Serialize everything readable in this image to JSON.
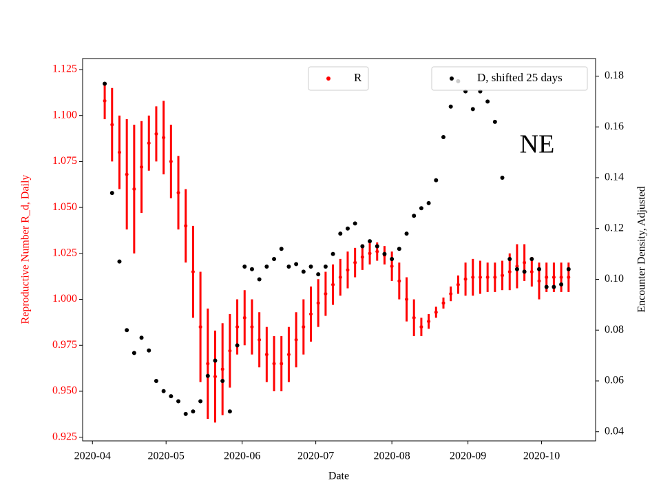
{
  "chart_data": {
    "type": "errorbar-dual",
    "annotation": "NE",
    "xlabel": "Date",
    "ylabel": "Reproductive Number R_d, Daily",
    "y2label": "Encounter Density, Adjusted",
    "xlim": [
      "2020-03-28",
      "2020-10-23"
    ],
    "xticks": [
      "2020-04",
      "2020-05",
      "2020-06",
      "2020-07",
      "2020-08",
      "2020-09",
      "2020-10"
    ],
    "ylim": [
      0.923,
      1.131
    ],
    "yticks": [
      0.925,
      {
        "value": 0.95,
        "label": "0.950"
      },
      0.975,
      {
        "value": 1.0,
        "label": "1.000"
      },
      1.025,
      {
        "value": 1.05,
        "label": "1.050"
      },
      1.075,
      {
        "value": 1.1,
        "label": "1.100"
      },
      1.125
    ],
    "y2lim": [
      0.0364,
      0.1869
    ],
    "y2ticks": [
      0.04,
      0.06,
      0.08,
      {
        "value": 0.1,
        "label": "0.10"
      },
      0.12,
      0.14,
      0.16,
      0.18
    ],
    "x": [
      "2020-04-06",
      "2020-04-09",
      "2020-04-12",
      "2020-04-15",
      "2020-04-18",
      "2020-04-21",
      "2020-04-24",
      "2020-04-27",
      "2020-04-30",
      "2020-05-03",
      "2020-05-06",
      "2020-05-09",
      "2020-05-12",
      "2020-05-15",
      "2020-05-18",
      "2020-05-21",
      "2020-05-24",
      "2020-05-27",
      "2020-05-30",
      "2020-06-02",
      "2020-06-05",
      "2020-06-08",
      "2020-06-11",
      "2020-06-14",
      "2020-06-17",
      "2020-06-20",
      "2020-06-23",
      "2020-06-26",
      "2020-06-29",
      "2020-07-02",
      "2020-07-05",
      "2020-07-08",
      "2020-07-11",
      "2020-07-14",
      "2020-07-17",
      "2020-07-20",
      "2020-07-23",
      "2020-07-26",
      "2020-07-29",
      "2020-08-01",
      "2020-08-04",
      "2020-08-07",
      "2020-08-10",
      "2020-08-13",
      "2020-08-16",
      "2020-08-19",
      "2020-08-22",
      "2020-08-25",
      "2020-08-28",
      "2020-08-31",
      "2020-09-03",
      "2020-09-06",
      "2020-09-09",
      "2020-09-12",
      "2020-09-15",
      "2020-09-18",
      "2020-09-21",
      "2020-09-24",
      "2020-09-27",
      "2020-09-30",
      "2020-10-03",
      "2020-10-06",
      "2020-10-09",
      "2020-10-12"
    ],
    "series": [
      {
        "name": "R",
        "color": "#ff0000",
        "values": [
          1.108,
          1.095,
          1.08,
          1.068,
          1.06,
          1.072,
          1.085,
          1.09,
          1.088,
          1.075,
          1.058,
          1.04,
          1.015,
          0.985,
          0.965,
          0.958,
          0.962,
          0.972,
          0.985,
          0.99,
          0.985,
          0.978,
          0.97,
          0.965,
          0.965,
          0.97,
          0.978,
          0.985,
          0.992,
          0.998,
          1.003,
          1.008,
          1.012,
          1.016,
          1.02,
          1.023,
          1.025,
          1.026,
          1.024,
          1.018,
          1.01,
          1.0,
          0.99,
          0.985,
          0.988,
          0.993,
          0.998,
          1.003,
          1.008,
          1.011,
          1.012,
          1.012,
          1.012,
          1.012,
          1.013,
          1.015,
          1.018,
          1.02,
          1.015,
          1.01,
          1.012,
          1.012,
          1.012,
          1.012
        ],
        "errors": [
          0.01,
          0.02,
          0.02,
          0.03,
          0.035,
          0.025,
          0.015,
          0.015,
          0.02,
          0.02,
          0.02,
          0.02,
          0.025,
          0.03,
          0.03,
          0.025,
          0.025,
          0.02,
          0.015,
          0.015,
          0.015,
          0.015,
          0.015,
          0.015,
          0.015,
          0.015,
          0.015,
          0.015,
          0.015,
          0.013,
          0.012,
          0.011,
          0.01,
          0.01,
          0.008,
          0.007,
          0.006,
          0.005,
          0.005,
          0.008,
          0.01,
          0.012,
          0.01,
          0.005,
          0.004,
          0.003,
          0.003,
          0.004,
          0.005,
          0.009,
          0.01,
          0.009,
          0.008,
          0.008,
          0.008,
          0.01,
          0.012,
          0.01,
          0.008,
          0.01,
          0.008,
          0.008,
          0.008,
          0.008
        ]
      },
      {
        "name": "D, shifted 25 days",
        "color": "#000000",
        "axis": "y2",
        "values": [
          0.177,
          0.134,
          0.107,
          0.08,
          0.071,
          0.077,
          0.072,
          0.06,
          0.056,
          0.054,
          0.052,
          0.047,
          0.048,
          0.052,
          0.062,
          0.068,
          0.06,
          0.048,
          0.074,
          0.105,
          0.104,
          0.1,
          0.105,
          0.108,
          0.112,
          0.105,
          0.106,
          0.103,
          0.105,
          0.102,
          0.105,
          0.11,
          0.118,
          0.12,
          0.122,
          0.113,
          0.115,
          0.113,
          0.11,
          0.108,
          0.112,
          0.118,
          0.125,
          0.128,
          0.13,
          0.139,
          0.156,
          0.168,
          0.178,
          0.174,
          0.167,
          0.174,
          0.17,
          0.162,
          0.14,
          0.108,
          0.104,
          0.103,
          0.108,
          0.104,
          0.097,
          0.097,
          0.098,
          0.104
        ]
      }
    ]
  }
}
